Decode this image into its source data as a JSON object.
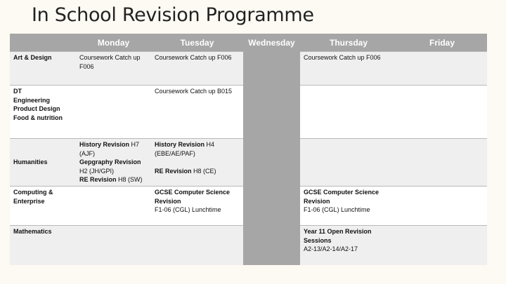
{
  "title": "In School Revision Programme",
  "header": [
    "",
    "Monday",
    "Tuesday",
    "Wednesday",
    "Thursday",
    "Friday"
  ],
  "colors": {
    "header_bg": "#a6a6a6",
    "row_alt": "#efefef",
    "background": "#fdf9f3"
  },
  "rows": [
    {
      "subject": [
        "Art & Design"
      ],
      "cells": [
        [
          {
            "t": "Coursework Catch up"
          },
          {
            "t": "F006"
          }
        ],
        [
          {
            "t": "Coursework Catch up F006"
          }
        ],
        [],
        [
          {
            "t": "Coursework Catch up F006"
          }
        ],
        []
      ]
    },
    {
      "subject": [
        "DT",
        "Engineering",
        "Product Design",
        "Food & nutrition"
      ],
      "cells": [
        [],
        [
          {
            "t": "Coursework Catch up B015"
          }
        ],
        [],
        [],
        []
      ]
    },
    {
      "subject": [
        "Humanities"
      ],
      "cells": [
        [
          {
            "b": "History Revision",
            "t": " H7"
          },
          {
            "t": "(AJF)"
          },
          {
            "b": "Gepgraphy Revision"
          },
          {
            "t": "H2 (JH/GPI)"
          },
          {
            "b": "RE Revision",
            "t": " H8 (SW)"
          }
        ],
        [
          {
            "b": "History Revision",
            "t": " H4"
          },
          {
            "t": "(EBE/AE/PAF)"
          },
          {
            "gap": true
          },
          {
            "b": "RE Revision",
            "t": " H8 (CE)"
          }
        ],
        [],
        [],
        []
      ]
    },
    {
      "subject": [
        "Computing &",
        "Enterprise"
      ],
      "cells": [
        [],
        [
          {
            "b": "GCSE Computer Science"
          },
          {
            "b": "Revision"
          },
          {
            "t": "F1-06 (CGL) Lunchtime"
          }
        ],
        [],
        [
          {
            "b": "GCSE Computer Science"
          },
          {
            "b": "Revision"
          },
          {
            "t": "F1-06 (CGL) Lunchtime"
          }
        ],
        []
      ]
    },
    {
      "subject": [
        "Mathematics"
      ],
      "cells": [
        [],
        [],
        [],
        [
          {
            "b": "Year 11 Open Revision"
          },
          {
            "b": "Sessions"
          },
          {
            "t": "A2-13/A2-14/A2-17"
          }
        ],
        []
      ]
    }
  ]
}
